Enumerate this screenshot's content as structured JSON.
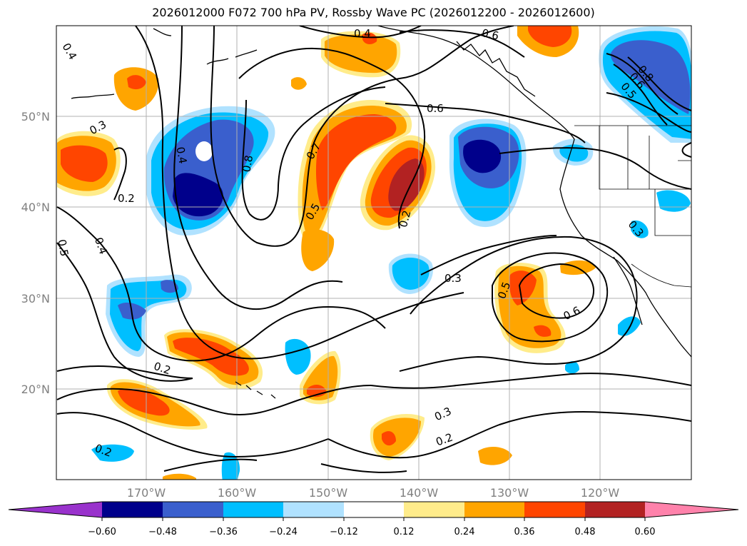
{
  "title": "2026012000 F072 700 hPa PV, Rossby Wave PC (2026012200 - 2026012600)",
  "map": {
    "lon_labels": [
      "170°W",
      "160°W",
      "150°W",
      "140°W",
      "130°W",
      "120°W"
    ],
    "lat_labels": [
      "50°N",
      "40°N",
      "30°N",
      "20°N"
    ],
    "contour_labels": [
      "0.4",
      "0.6",
      "0.4",
      "0.3",
      "0.2",
      "0.4",
      "0.8",
      "0.7",
      "0.5",
      "0.2",
      "0.6",
      "0.8",
      "0.6",
      "0.5",
      "0.5",
      "0.4",
      "0.5",
      "0.6",
      "0.3",
      "0.2",
      "0.3",
      "0.2",
      "0.2",
      "0.3"
    ]
  },
  "colorbar": {
    "colors": [
      "#9932cc",
      "#00008b",
      "#3a5fcd",
      "#00bfff",
      "#b0e2ff",
      "#ffffff",
      "#ffec8b",
      "#ffa500",
      "#ff4500",
      "#b22222",
      "#ff82ab"
    ],
    "tick_labels": [
      "−0.60",
      "−0.48",
      "−0.36",
      "−0.24",
      "−0.12",
      "0.12",
      "0.24",
      "0.36",
      "0.48",
      "0.60"
    ]
  }
}
